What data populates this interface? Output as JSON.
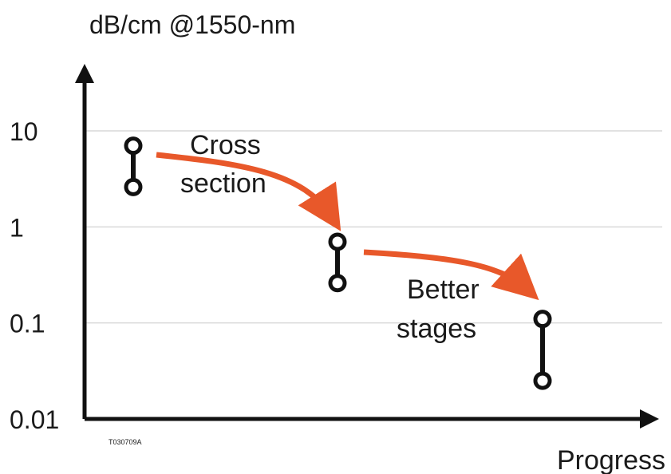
{
  "chart_data": {
    "type": "range",
    "title": "",
    "ylabel": "dB/cm @1550-nm",
    "xlabel": "Progress",
    "yscale": "log",
    "ylim": [
      0.01,
      10
    ],
    "y_ticks": [
      "10",
      "1",
      "0.1",
      "0.01"
    ],
    "grid": true,
    "ranges": [
      {
        "high": 7,
        "low": 2.6
      },
      {
        "high": 0.7,
        "low": 0.26
      },
      {
        "high": 0.11,
        "low": 0.025
      }
    ],
    "annotations": [
      {
        "lines": [
          "Cross",
          "section"
        ]
      },
      {
        "lines": [
          "Better",
          "stages"
        ]
      }
    ],
    "figure_code": "T030709A",
    "colors": {
      "arrow": "#e8582a",
      "axis": "#111111",
      "grid": "#d9d9d9",
      "range": "#111111"
    }
  }
}
